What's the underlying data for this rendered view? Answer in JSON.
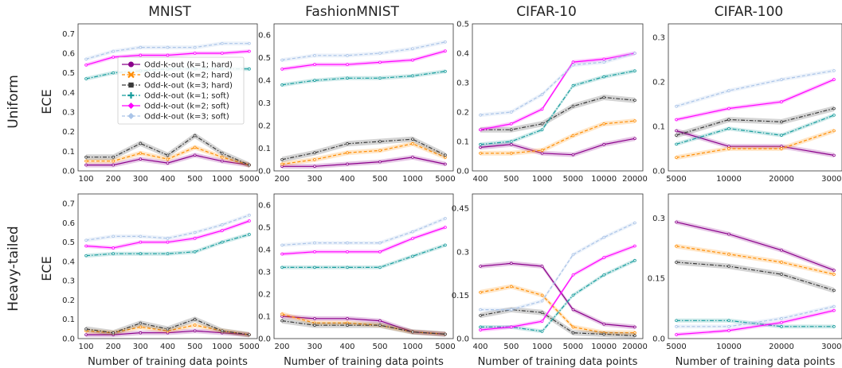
{
  "figure": {
    "column_titles": [
      "MNIST",
      "FashionMNIST",
      "CIFAR-10",
      "CIFAR-100"
    ],
    "row_labels": [
      "Uniform",
      "Heavy-tailed"
    ],
    "ylabel": "ECE",
    "xlabel": "Number of training data points"
  },
  "legend": {
    "placement": "inside MNIST Uniform panel, upper-middle",
    "entries": [
      {
        "label": "Odd-k-out (k=1; hard)",
        "color": "#8B008B",
        "marker": "circle",
        "dash": "solid"
      },
      {
        "label": "Odd-k-out (k=2; hard)",
        "color": "#FF8C00",
        "marker": "x",
        "dash": "dashed"
      },
      {
        "label": "Odd-k-out (k=3; hard)",
        "color": "#3a3a3a",
        "marker": "square",
        "dash": "dashdot"
      },
      {
        "label": "Odd-k-out (k=1; soft)",
        "color": "#169c9c",
        "marker": "plus",
        "dash": "dashdot"
      },
      {
        "label": "Odd-k-out (k=2; soft)",
        "color": "#FF00FF",
        "marker": "diamond",
        "dash": "solid"
      },
      {
        "label": "Odd-k-out (k=3; soft)",
        "color": "#aac4e8",
        "marker": "diamond",
        "dash": "dashed"
      }
    ]
  },
  "chart_data": [
    {
      "type": "line",
      "title": "MNIST",
      "row": "Uniform",
      "ylabel": "ECE",
      "xlabel": "",
      "x": [
        "100",
        "200",
        "300",
        "400",
        "500",
        "1000",
        "5000"
      ],
      "ylim": [
        0,
        0.75
      ],
      "yticks": [
        0,
        0.1,
        0.2,
        0.3,
        0.4,
        0.5,
        0.6,
        0.7
      ],
      "ytick_labels": [
        "0.0",
        "0.1",
        "0.2",
        "0.3",
        "0.4",
        "0.5",
        "0.6",
        "0.7"
      ],
      "series": [
        {
          "name": "Odd-k-out (k=1; hard)",
          "values": [
            0.03,
            0.03,
            0.06,
            0.04,
            0.08,
            0.05,
            0.03
          ]
        },
        {
          "name": "Odd-k-out (k=2; hard)",
          "values": [
            0.05,
            0.05,
            0.09,
            0.06,
            0.12,
            0.07,
            0.03
          ]
        },
        {
          "name": "Odd-k-out (k=3; hard)",
          "values": [
            0.07,
            0.07,
            0.14,
            0.08,
            0.18,
            0.09,
            0.03
          ]
        },
        {
          "name": "Odd-k-out (k=1; soft)",
          "values": [
            0.47,
            0.5,
            0.51,
            0.52,
            0.52,
            0.52,
            0.52
          ]
        },
        {
          "name": "Odd-k-out (k=2; soft)",
          "values": [
            0.54,
            0.58,
            0.59,
            0.59,
            0.6,
            0.6,
            0.61
          ]
        },
        {
          "name": "Odd-k-out (k=3; soft)",
          "values": [
            0.57,
            0.61,
            0.63,
            0.63,
            0.63,
            0.65,
            0.65
          ]
        }
      ]
    },
    {
      "type": "line",
      "title": "FashionMNIST",
      "row": "Uniform",
      "ylabel": "",
      "xlabel": "",
      "x": [
        "200",
        "300",
        "400",
        "500",
        "1000",
        "5000"
      ],
      "ylim": [
        0,
        0.65
      ],
      "yticks": [
        0,
        0.1,
        0.2,
        0.3,
        0.4,
        0.5,
        0.6
      ],
      "ytick_labels": [
        "0.0",
        "0.1",
        "0.2",
        "0.3",
        "0.4",
        "0.5",
        "0.6"
      ],
      "series": [
        {
          "name": "Odd-k-out (k=1; hard)",
          "values": [
            0.02,
            0.02,
            0.03,
            0.04,
            0.06,
            0.03
          ]
        },
        {
          "name": "Odd-k-out (k=2; hard)",
          "values": [
            0.03,
            0.05,
            0.08,
            0.09,
            0.12,
            0.06
          ]
        },
        {
          "name": "Odd-k-out (k=3; hard)",
          "values": [
            0.05,
            0.08,
            0.12,
            0.13,
            0.14,
            0.07
          ]
        },
        {
          "name": "Odd-k-out (k=1; soft)",
          "values": [
            0.38,
            0.4,
            0.41,
            0.41,
            0.42,
            0.44
          ]
        },
        {
          "name": "Odd-k-out (k=2; soft)",
          "values": [
            0.45,
            0.47,
            0.47,
            0.48,
            0.49,
            0.53
          ]
        },
        {
          "name": "Odd-k-out (k=3; soft)",
          "values": [
            0.49,
            0.51,
            0.51,
            0.52,
            0.54,
            0.57
          ]
        }
      ]
    },
    {
      "type": "line",
      "title": "CIFAR-10",
      "row": "Uniform",
      "ylabel": "",
      "xlabel": "",
      "x": [
        "400",
        "500",
        "1000",
        "5000",
        "10000",
        "20000"
      ],
      "ylim": [
        0,
        0.5
      ],
      "yticks": [
        0,
        0.1,
        0.2,
        0.3,
        0.4,
        0.5
      ],
      "ytick_labels": [
        "0.0",
        "0.1",
        "0.2",
        "0.3",
        "0.4",
        "0.5"
      ],
      "series": [
        {
          "name": "Odd-k-out (k=1; hard)",
          "values": [
            0.08,
            0.09,
            0.06,
            0.055,
            0.09,
            0.11
          ]
        },
        {
          "name": "Odd-k-out (k=2; hard)",
          "values": [
            0.06,
            0.06,
            0.07,
            0.12,
            0.16,
            0.17
          ]
        },
        {
          "name": "Odd-k-out (k=3; hard)",
          "values": [
            0.14,
            0.14,
            0.16,
            0.22,
            0.25,
            0.24
          ]
        },
        {
          "name": "Odd-k-out (k=1; soft)",
          "values": [
            0.09,
            0.1,
            0.14,
            0.29,
            0.32,
            0.34
          ]
        },
        {
          "name": "Odd-k-out (k=2; soft)",
          "values": [
            0.14,
            0.16,
            0.21,
            0.37,
            0.38,
            0.4
          ]
        },
        {
          "name": "Odd-k-out (k=3; soft)",
          "values": [
            0.19,
            0.2,
            0.26,
            0.36,
            0.37,
            0.4
          ]
        }
      ]
    },
    {
      "type": "line",
      "title": "CIFAR-100",
      "row": "Uniform",
      "ylabel": "",
      "xlabel": "",
      "x": [
        "5000",
        "10000",
        "20000",
        "30000"
      ],
      "ylim": [
        0,
        0.33
      ],
      "yticks": [
        0,
        0.1,
        0.2,
        0.3
      ],
      "ytick_labels": [
        "0.0",
        "0.1",
        "0.2",
        "0.3"
      ],
      "series": [
        {
          "name": "Odd-k-out (k=1; hard)",
          "values": [
            0.09,
            0.055,
            0.055,
            0.035
          ]
        },
        {
          "name": "Odd-k-out (k=2; hard)",
          "values": [
            0.03,
            0.05,
            0.05,
            0.09
          ]
        },
        {
          "name": "Odd-k-out (k=3; hard)",
          "values": [
            0.08,
            0.115,
            0.11,
            0.14
          ]
        },
        {
          "name": "Odd-k-out (k=1; soft)",
          "values": [
            0.06,
            0.095,
            0.08,
            0.125
          ]
        },
        {
          "name": "Odd-k-out (k=2; soft)",
          "values": [
            0.115,
            0.14,
            0.155,
            0.205
          ]
        },
        {
          "name": "Odd-k-out (k=3; soft)",
          "values": [
            0.145,
            0.18,
            0.205,
            0.225
          ]
        }
      ]
    },
    {
      "type": "line",
      "title": "",
      "row": "Heavy-tailed",
      "ylabel": "ECE",
      "xlabel": "Number of training data points",
      "x": [
        "100",
        "200",
        "300",
        "400",
        "500",
        "1000",
        "5000"
      ],
      "ylim": [
        0,
        0.75
      ],
      "yticks": [
        0,
        0.1,
        0.2,
        0.3,
        0.4,
        0.5,
        0.6,
        0.7
      ],
      "ytick_labels": [
        "0.0",
        "0.1",
        "0.2",
        "0.3",
        "0.4",
        "0.5",
        "0.6",
        "0.7"
      ],
      "series": [
        {
          "name": "Odd-k-out (k=1; hard)",
          "values": [
            0.02,
            0.02,
            0.03,
            0.03,
            0.04,
            0.03,
            0.02
          ]
        },
        {
          "name": "Odd-k-out (k=2; hard)",
          "values": [
            0.04,
            0.03,
            0.06,
            0.04,
            0.07,
            0.04,
            0.02
          ]
        },
        {
          "name": "Odd-k-out (k=3; hard)",
          "values": [
            0.05,
            0.03,
            0.08,
            0.05,
            0.1,
            0.04,
            0.02
          ]
        },
        {
          "name": "Odd-k-out (k=1; soft)",
          "values": [
            0.43,
            0.44,
            0.44,
            0.44,
            0.45,
            0.5,
            0.54
          ]
        },
        {
          "name": "Odd-k-out (k=2; soft)",
          "values": [
            0.48,
            0.47,
            0.5,
            0.5,
            0.52,
            0.56,
            0.61
          ]
        },
        {
          "name": "Odd-k-out (k=3; soft)",
          "values": [
            0.51,
            0.53,
            0.53,
            0.52,
            0.55,
            0.59,
            0.64
          ]
        }
      ]
    },
    {
      "type": "line",
      "title": "",
      "row": "Heavy-tailed",
      "ylabel": "",
      "xlabel": "Number of training data points",
      "x": [
        "200",
        "300",
        "400",
        "500",
        "1000",
        "5000"
      ],
      "ylim": [
        0,
        0.65
      ],
      "yticks": [
        0,
        0.1,
        0.2,
        0.3,
        0.4,
        0.5,
        0.6
      ],
      "ytick_labels": [
        "0.0",
        "0.1",
        "0.2",
        "0.3",
        "0.4",
        "0.5",
        "0.6"
      ],
      "series": [
        {
          "name": "Odd-k-out (k=1; hard)",
          "values": [
            0.1,
            0.09,
            0.09,
            0.08,
            0.03,
            0.02
          ]
        },
        {
          "name": "Odd-k-out (k=2; hard)",
          "values": [
            0.11,
            0.07,
            0.07,
            0.06,
            0.03,
            0.02
          ]
        },
        {
          "name": "Odd-k-out (k=3; hard)",
          "values": [
            0.08,
            0.06,
            0.06,
            0.06,
            0.03,
            0.02
          ]
        },
        {
          "name": "Odd-k-out (k=1; soft)",
          "values": [
            0.32,
            0.32,
            0.32,
            0.32,
            0.37,
            0.42
          ]
        },
        {
          "name": "Odd-k-out (k=2; soft)",
          "values": [
            0.38,
            0.39,
            0.39,
            0.39,
            0.45,
            0.5
          ]
        },
        {
          "name": "Odd-k-out (k=3; soft)",
          "values": [
            0.42,
            0.43,
            0.43,
            0.43,
            0.48,
            0.54
          ]
        }
      ]
    },
    {
      "type": "line",
      "title": "",
      "row": "Heavy-tailed",
      "ylabel": "",
      "xlabel": "Number of training data points",
      "x": [
        "400",
        "500",
        "1000",
        "5000",
        "10000",
        "20000"
      ],
      "ylim": [
        0,
        0.5
      ],
      "yticks": [
        0,
        0.15,
        0.3,
        0.45
      ],
      "ytick_labels": [
        "0.0",
        "0.15",
        "0.3",
        "0.45"
      ],
      "series": [
        {
          "name": "Odd-k-out (k=1; hard)",
          "values": [
            0.25,
            0.26,
            0.25,
            0.1,
            0.05,
            0.04
          ]
        },
        {
          "name": "Odd-k-out (k=2; hard)",
          "values": [
            0.16,
            0.18,
            0.15,
            0.04,
            0.02,
            0.02
          ]
        },
        {
          "name": "Odd-k-out (k=3; hard)",
          "values": [
            0.08,
            0.1,
            0.09,
            0.02,
            0.015,
            0.01
          ]
        },
        {
          "name": "Odd-k-out (k=1; soft)",
          "values": [
            0.04,
            0.04,
            0.025,
            0.15,
            0.22,
            0.27
          ]
        },
        {
          "name": "Odd-k-out (k=2; soft)",
          "values": [
            0.03,
            0.04,
            0.06,
            0.22,
            0.28,
            0.32
          ]
        },
        {
          "name": "Odd-k-out (k=3; soft)",
          "values": [
            0.1,
            0.1,
            0.13,
            0.29,
            0.35,
            0.4
          ]
        }
      ]
    },
    {
      "type": "line",
      "title": "",
      "row": "Heavy-tailed",
      "ylabel": "",
      "xlabel": "Number of training data points",
      "x": [
        "5000",
        "10000",
        "20000",
        "30000"
      ],
      "ylim": [
        0,
        0.36
      ],
      "yticks": [
        0,
        0.15,
        0.3
      ],
      "ytick_labels": [
        "0.0",
        "0.15",
        "0.3"
      ],
      "series": [
        {
          "name": "Odd-k-out (k=1; hard)",
          "values": [
            0.29,
            0.26,
            0.22,
            0.17
          ]
        },
        {
          "name": "Odd-k-out (k=2; hard)",
          "values": [
            0.23,
            0.21,
            0.19,
            0.16
          ]
        },
        {
          "name": "Odd-k-out (k=3; hard)",
          "values": [
            0.19,
            0.18,
            0.16,
            0.12
          ]
        },
        {
          "name": "Odd-k-out (k=1; soft)",
          "values": [
            0.045,
            0.045,
            0.03,
            0.03
          ]
        },
        {
          "name": "Odd-k-out (k=2; soft)",
          "values": [
            0.01,
            0.02,
            0.04,
            0.07
          ]
        },
        {
          "name": "Odd-k-out (k=3; soft)",
          "values": [
            0.03,
            0.03,
            0.05,
            0.08
          ]
        }
      ]
    }
  ]
}
